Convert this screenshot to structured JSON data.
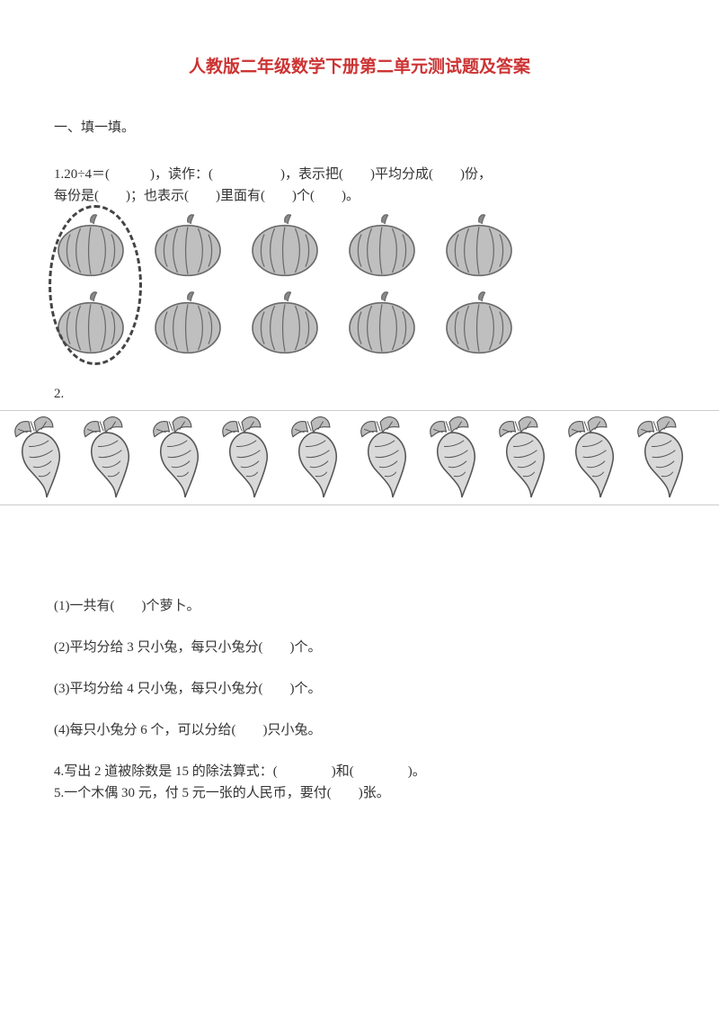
{
  "title": "人教版二年级数学下册第二单元测试题及答案",
  "section1_heading": "一、填一填。",
  "q1": {
    "line1": "1.20÷4＝(　　　)，读作：(　　　　　)，表示把(　　)平均分成(　　)份，",
    "line2": "每份是(　　)；也表示(　　)里面有(　　)个(　　)。"
  },
  "pumpkin": {
    "count_per_row": 5,
    "rows": 2,
    "fill": "#bfbfbf",
    "stroke": "#696969",
    "stem_fill": "#888888",
    "dashed_border": "#444444"
  },
  "q2_label": "2.",
  "radish": {
    "count": 10,
    "fill": "#d9d9d9",
    "stroke": "#555555",
    "leaf_fill": "#bcbcbc"
  },
  "q2_sub1": "(1)一共有(　　)个萝卜。",
  "q2_sub2": "(2)平均分给 3 只小兔，每只小兔分(　　)个。",
  "q2_sub3": "(3)平均分给 4 只小兔，每只小兔分(　　)个。",
  "q2_sub4": "(4)每只小兔分 6 个，可以分给(　　)只小兔。",
  "q4": "4.写出 2 道被除数是 15 的除法算式：(　　　　)和(　　　　)。",
  "q5": "5.一个木偶 30 元，付 5 元一张的人民币，要付(　　)张。",
  "colors": {
    "title": "#cc3333",
    "text": "#333333",
    "bg": "#ffffff",
    "rule": "#cccccc"
  }
}
